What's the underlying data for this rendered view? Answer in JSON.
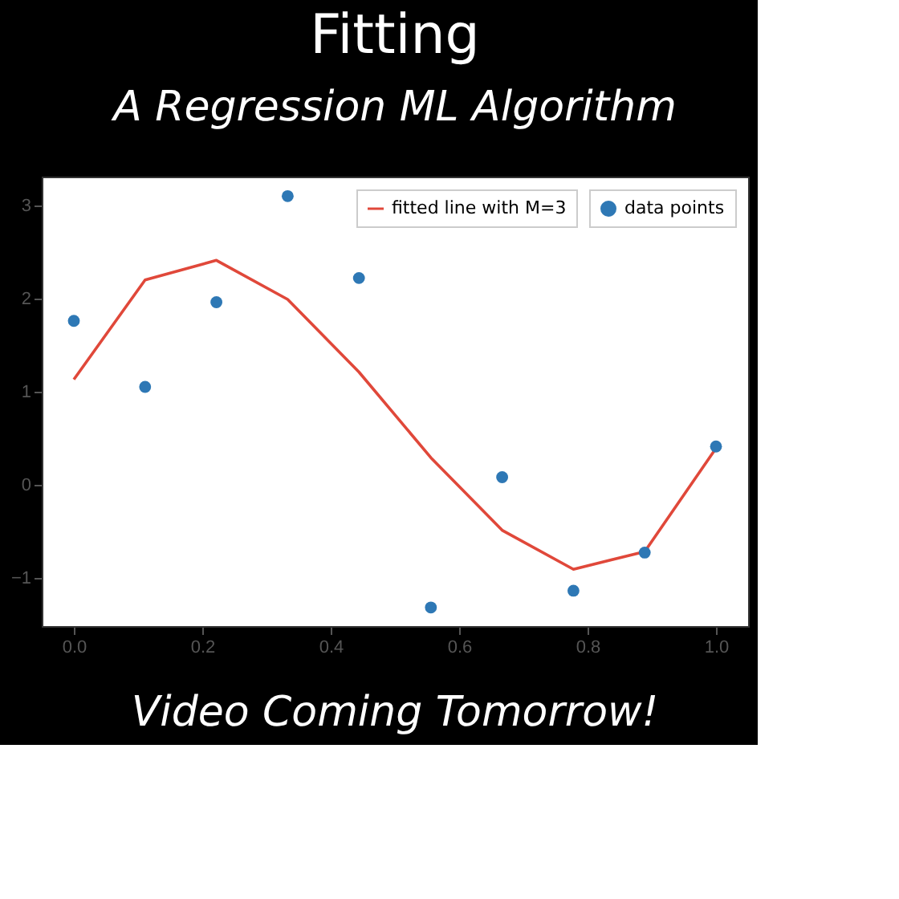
{
  "chart_data": {
    "type": "scatter",
    "title": "Fitting",
    "subtitle": "A Regression ML Algorithm",
    "annotations": [
      "Video Coming Tomorrow!"
    ],
    "x": [
      0,
      0.111,
      0.222,
      0.333,
      0.444,
      0.556,
      0.667,
      0.778,
      0.889,
      1.0
    ],
    "series": [
      {
        "name": "fitted line with M=3",
        "type": "line",
        "color": "#e0483a",
        "values": [
          1.13,
          2.2,
          2.41,
          1.99,
          1.21,
          0.29,
          -0.49,
          -0.91,
          -0.72,
          0.39
        ]
      },
      {
        "name": "data points",
        "color": "#2e78b5",
        "marker": "circle",
        "values": [
          1.76,
          1.05,
          1.96,
          3.1,
          2.22,
          -1.32,
          0.08,
          -1.14,
          -0.73,
          0.41
        ]
      }
    ],
    "xlim": [
      -0.05,
      1.05
    ],
    "xticks": [
      {
        "value": 0,
        "label": "0.0"
      },
      {
        "value": 0.2,
        "label": "0.2"
      },
      {
        "value": 0.4,
        "label": "0.4"
      },
      {
        "value": 0.6,
        "label": "0.6"
      },
      {
        "value": 0.8,
        "label": "0.8"
      },
      {
        "value": 1.0,
        "label": "1.0"
      }
    ],
    "ylim": [
      -1.52,
      3.31
    ],
    "yticks": [
      {
        "value": -1,
        "label": "−1"
      },
      0,
      1,
      2,
      3
    ],
    "grid": false,
    "legend": "top right"
  }
}
